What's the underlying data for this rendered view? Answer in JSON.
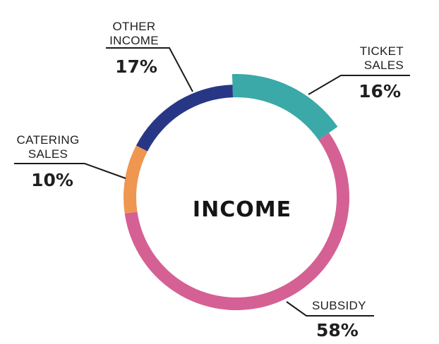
{
  "chart_data": {
    "type": "pie",
    "center_label": "INCOME",
    "slices": [
      {
        "label_lines": [
          "TICKET",
          "SALES"
        ],
        "value": 16,
        "value_label": "16%",
        "color": "#3aa9a7"
      },
      {
        "label_lines": [
          "SUBSIDY"
        ],
        "value": 58,
        "value_label": "58%",
        "color": "#d56094"
      },
      {
        "label_lines": [
          "CATERING",
          "SALES"
        ],
        "value": 10,
        "value_label": "10%",
        "color": "#ef9651"
      },
      {
        "label_lines": [
          "OTHER",
          "INCOME"
        ],
        "value": 17,
        "value_label": "17%",
        "color": "#283785"
      }
    ]
  }
}
